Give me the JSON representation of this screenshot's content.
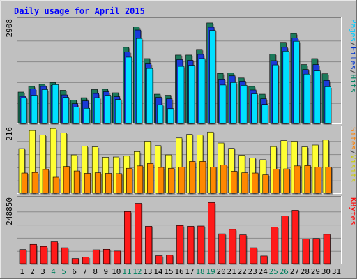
{
  "chart_data": {
    "type": "bar",
    "title": "Daily usage for April 2015",
    "days": [
      "1",
      "2",
      "3",
      "4",
      "5",
      "6",
      "7",
      "8",
      "9",
      "10",
      "11",
      "12",
      "13",
      "14",
      "15",
      "16",
      "17",
      "18",
      "19",
      "20",
      "21",
      "22",
      "23",
      "24",
      "25",
      "26",
      "27",
      "28",
      "29",
      "30",
      "31"
    ],
    "weekend_days": [
      "4",
      "5",
      "11",
      "12",
      "18",
      "19",
      "25",
      "26"
    ],
    "panels": [
      {
        "id": "hits",
        "max_label": "2908",
        "ymax": 2908,
        "legend": [
          "Pages",
          "/",
          "Files",
          "/",
          "Hits"
        ],
        "legend_colors": [
          "#00ccff",
          "#404040",
          "#0033cc",
          "#404040",
          "#008060"
        ],
        "series": [
          {
            "name": "Hits",
            "color": "#1c7a5b",
            "values": [
              890,
              1050,
              1110,
              1160,
              940,
              660,
              730,
              960,
              970,
              870,
              2160,
              2740,
              1840,
              830,
              800,
              1940,
              1940,
              2100,
              2850,
              1420,
              1430,
              1290,
              1050,
              830,
              1970,
              2300,
              2550,
              1670,
              1840,
              1410,
              0
            ]
          },
          {
            "name": "Files",
            "color": "#1a3ad8",
            "values": [
              770,
              980,
              1050,
              1080,
              810,
              560,
              640,
              850,
              900,
              760,
              2030,
              2650,
              1690,
              740,
              700,
              1810,
              1790,
              1960,
              2730,
              1260,
              1350,
              1200,
              950,
              700,
              1780,
              2160,
              2420,
              1530,
              1670,
              1220,
              0
            ]
          },
          {
            "name": "Pages",
            "color": "#00e0ff",
            "values": [
              730,
              800,
              960,
              1100,
              740,
              470,
              430,
              730,
              800,
              680,
              1880,
              2410,
              1560,
              530,
              420,
              1620,
              1650,
              1840,
              2640,
              1090,
              1160,
              1080,
              840,
              540,
              1660,
              2050,
              2330,
              1400,
              1490,
              1040,
              0
            ]
          }
        ]
      },
      {
        "id": "visits",
        "max_label": "216",
        "ymax": 216,
        "legend": [
          "Sites",
          "/",
          "Visits"
        ],
        "legend_colors": [
          "#ff8000",
          "#404040",
          "#cccc00"
        ],
        "series": [
          {
            "name": "Visits",
            "color": "#ffff33",
            "values": [
              150,
              211,
              196,
              218,
              203,
              129,
              158,
              156,
              121,
              122,
              125,
              140,
              175,
              160,
              129,
              186,
              198,
              196,
              206,
              169,
              151,
              128,
              119,
              113,
              157,
              177,
              175,
              156,
              162,
              179,
              0
            ]
          },
          {
            "name": "Sites",
            "color": "#ff8800",
            "values": [
              68,
              70,
              80,
              54,
              90,
              75,
              67,
              69,
              67,
              66,
              84,
              92,
              100,
              87,
              84,
              88,
              107,
              107,
              88,
              95,
              74,
              69,
              68,
              62,
              81,
              82,
              92,
              93,
              88,
              88,
              0
            ]
          }
        ]
      },
      {
        "id": "kbytes",
        "max_label": "248850",
        "ymax": 248850,
        "legend": [
          "KBytes"
        ],
        "legend_colors": [
          "#ff0000"
        ],
        "series": [
          {
            "name": "KBytes",
            "color": "#ff1a1a",
            "values": [
              55000,
              75000,
              67000,
              85000,
              62000,
              20000,
              26000,
              54000,
              56000,
              49000,
              202000,
              234000,
              145000,
              31000,
              33000,
              148000,
              145000,
              146000,
              237000,
              116000,
              133000,
              112000,
              62000,
              30000,
              142000,
              185000,
              207000,
              96000,
              98000,
              114000,
              0
            ]
          }
        ]
      }
    ]
  }
}
